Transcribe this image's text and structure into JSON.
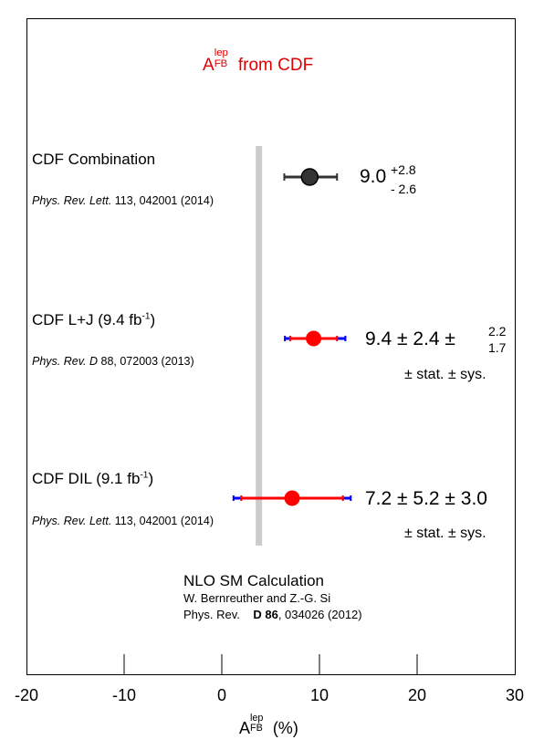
{
  "chart_data": {
    "type": "scatter",
    "title": {
      "base": "A",
      "sup": "lep",
      "sub": "FB",
      "rest": " from CDF"
    },
    "xlabel": {
      "base": "A",
      "sup": "lep",
      "sub": "FB",
      "rest": " (%)"
    },
    "xlim": [
      -20,
      30
    ],
    "xticks": [
      "-20",
      "-10",
      "0",
      "10",
      "20",
      "30"
    ],
    "band": {
      "x": 3.8,
      "color": "#cccccc"
    },
    "points": [
      {
        "name": "CDF Combination",
        "ref_italic": "Phys. Rev. Lett.",
        "ref_rest": " 113,  042001 (2014)",
        "x": 9.0,
        "err_low": 2.6,
        "err_high": 2.8,
        "value_text": "9.0",
        "err_high_text": "+2.8",
        "err_low_text": "- 2.6",
        "marker_color": "#333333",
        "bar_color": "#333333"
      },
      {
        "name_base": "CDF L+J (9.4 fb",
        "name_sup": "-1",
        "name_close": ")",
        "ref_italic": "Phys. Rev. D",
        "ref_rest": " 88,  072003 (2013)",
        "x": 9.4,
        "stat": 2.4,
        "sys_low": 1.7,
        "sys_high": 2.2,
        "value_text": "9.4 ± 2.4 ±",
        "sys_high_text": "2.2",
        "sys_low_text": "1.7",
        "tag_text": "± stat.  ± sys.",
        "marker_color": "#ff0000",
        "bar_color": "#ff0000",
        "sys_color": "#0000ff"
      },
      {
        "name_base": "CDF DIL (9.1 fb",
        "name_sup": "-1",
        "name_close": ")",
        "ref_italic": "Phys. Rev. Lett.",
        "ref_rest": " 113,  042001 (2014)",
        "x": 7.2,
        "stat": 5.2,
        "sys": 3.0,
        "value_text": "7.2 ± 5.2 ± 3.0",
        "tag_text": "± stat.  ± sys.",
        "marker_color": "#ff0000",
        "bar_color": "#ff0000",
        "sys_color": "#0000ff"
      }
    ],
    "annotation": {
      "title": "NLO SM Calculation",
      "authors": "W. Bernreuther and Z.-G. Si",
      "journal": "Phys. Rev.",
      "volume": "D 86",
      "rest": ", 034026 (2012)"
    }
  }
}
